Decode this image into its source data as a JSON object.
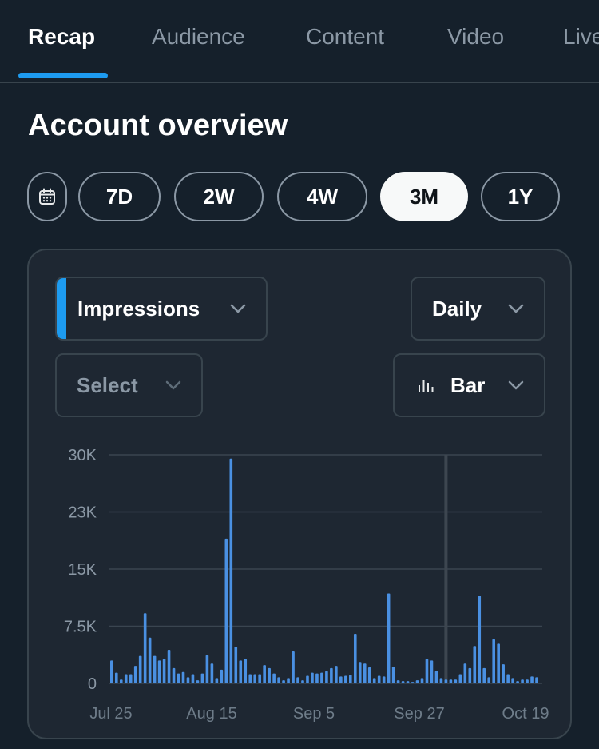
{
  "tabs": [
    {
      "label": "Recap",
      "active": true
    },
    {
      "label": "Audience",
      "active": false
    },
    {
      "label": "Content",
      "active": false
    },
    {
      "label": "Video",
      "active": false
    },
    {
      "label": "Live",
      "active": false
    }
  ],
  "page_title": "Account overview",
  "range_buttons": [
    {
      "label": "7D",
      "active": false
    },
    {
      "label": "2W",
      "active": false
    },
    {
      "label": "4W",
      "active": false
    },
    {
      "label": "3M",
      "active": true
    },
    {
      "label": "1Y",
      "active": false
    }
  ],
  "controls": {
    "metric": "Impressions",
    "interval": "Daily",
    "compare": "Select",
    "chart_type": "Bar"
  },
  "colors": {
    "accent": "#1d9bf0",
    "bar": "#4a90e2",
    "background": "#15202b",
    "card": "#1e2732"
  },
  "icons": {
    "calendar": "calendar-icon",
    "chevron": "chevron-down-icon",
    "bar_chart": "bar-chart-icon"
  },
  "chart_data": {
    "type": "bar",
    "series": [
      {
        "values": [
          3000,
          1400,
          500,
          1200,
          1200,
          2300,
          3600,
          9200,
          6000,
          3600,
          3000,
          3200,
          4400,
          2000,
          1300,
          1500,
          800,
          1200,
          400,
          1300,
          3700,
          2600,
          700,
          1800,
          19000,
          29500,
          4800,
          3000,
          3200,
          1200,
          1200,
          1200,
          2400,
          2000,
          1300,
          800,
          400,
          700,
          4200,
          800,
          400,
          1000,
          1400,
          1300,
          1400,
          1600,
          2000,
          2300,
          900,
          1000,
          1100,
          6500,
          2800,
          2600,
          2100,
          700,
          1000,
          900,
          11800,
          2200,
          400,
          300,
          300,
          200,
          400,
          700,
          3200,
          3000,
          1600,
          700,
          500,
          500,
          500,
          1200,
          2600,
          2000,
          4900,
          11500,
          2000,
          800,
          5800,
          5200,
          2500,
          1200,
          700,
          300,
          500,
          500,
          900,
          800
        ],
        "color": "#4a90e2"
      }
    ],
    "x_tick_labels": [
      "Jul 25",
      "Aug 15",
      "Sep 5",
      "Sep 27",
      "Oct 19"
    ],
    "y_tick_labels": [
      "0",
      "7.5K",
      "15K",
      "23K",
      "30K"
    ],
    "y_ticks": [
      0,
      7500,
      15000,
      22500,
      30000
    ],
    "ylim": [
      0,
      30000
    ],
    "grid": true,
    "cursor_day": 70
  }
}
